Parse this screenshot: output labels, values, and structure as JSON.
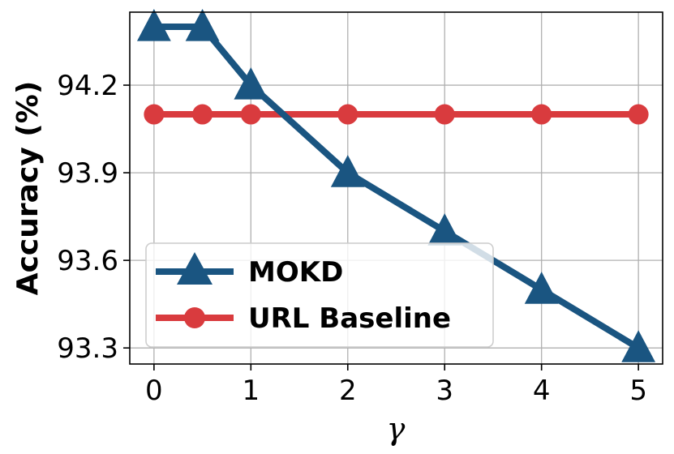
{
  "chart_data": {
    "type": "line",
    "xlabel": "γ",
    "ylabel": "Accuracy (%)",
    "xlim": [
      -0.25,
      5.25
    ],
    "ylim": [
      93.245,
      94.45
    ],
    "x_ticks": [
      0,
      1,
      2,
      3,
      4,
      5
    ],
    "y_ticks": [
      93.3,
      93.6,
      93.9,
      94.2
    ],
    "x_tick_labels": [
      "0",
      "1",
      "2",
      "3",
      "4",
      "5"
    ],
    "y_tick_labels": [
      "93.3",
      "93.6",
      "93.9",
      "94.2"
    ],
    "grid": true,
    "legend_position": "lower-left",
    "series": [
      {
        "name": "MOKD",
        "marker": "triangle",
        "color": "#1a5581",
        "x": [
          0,
          0.5,
          1,
          2,
          3,
          4,
          5
        ],
        "y": [
          94.4,
          94.4,
          94.2,
          93.9,
          93.7,
          93.5,
          93.3
        ]
      },
      {
        "name": "URL Baseline",
        "marker": "circle",
        "color": "#d93b3e",
        "x": [
          0,
          0.5,
          1,
          2,
          3,
          4,
          5
        ],
        "y": [
          94.1,
          94.1,
          94.1,
          94.1,
          94.1,
          94.1,
          94.1
        ]
      }
    ]
  }
}
